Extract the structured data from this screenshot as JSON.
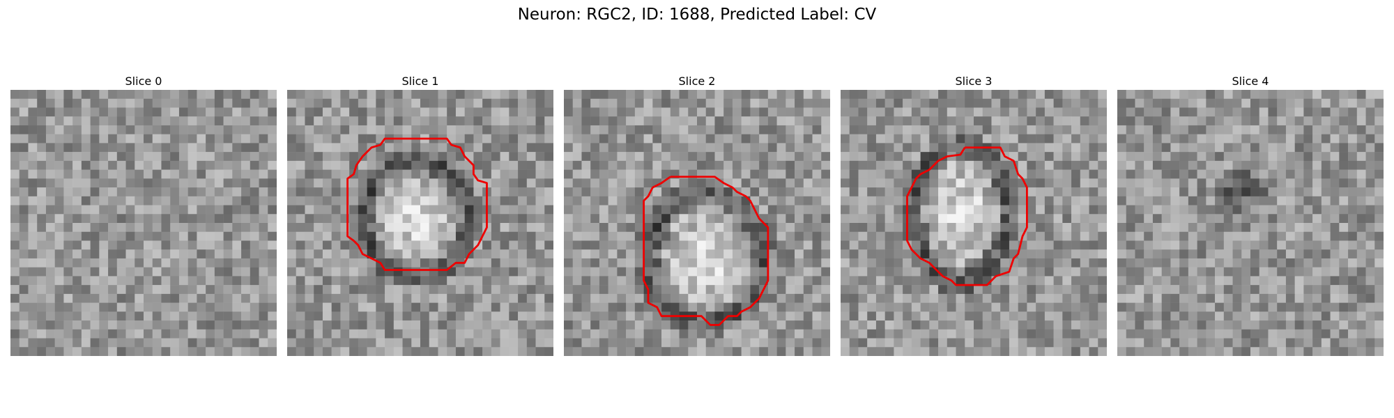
{
  "figure": {
    "title": "Neuron: RGC2, ID: 1688, Predicted Label: CV"
  },
  "slices": [
    {
      "label": "Slice 0",
      "has_contour": false,
      "seed": 11,
      "blob": null
    },
    {
      "label": "Slice 1",
      "has_contour": true,
      "seed": 23,
      "blob": {
        "cx": 14.5,
        "cy": 14.5,
        "rx": 5.2,
        "ry": 6.0,
        "ring": 2.4
      },
      "contour": [
        [
          14,
          5.5
        ],
        [
          18,
          5.5
        ],
        [
          18.5,
          6.2
        ],
        [
          19.5,
          6.5
        ],
        [
          20,
          7.5
        ],
        [
          21,
          8.5
        ],
        [
          21,
          9.5
        ],
        [
          21.5,
          10.2
        ],
        [
          22.5,
          10.5
        ],
        [
          22.5,
          15.5
        ],
        [
          22,
          16.5
        ],
        [
          21.5,
          17.5
        ],
        [
          20.5,
          18.5
        ],
        [
          20,
          19.5
        ],
        [
          19,
          19.5
        ],
        [
          18,
          20.3
        ],
        [
          11,
          20.3
        ],
        [
          10.5,
          19.5
        ],
        [
          9.5,
          19
        ],
        [
          8.5,
          18.5
        ],
        [
          8,
          17.5
        ],
        [
          7.5,
          17
        ],
        [
          6.8,
          16.5
        ],
        [
          6.8,
          10
        ],
        [
          7.5,
          9.5
        ],
        [
          7.8,
          8.5
        ],
        [
          8.5,
          7.5
        ],
        [
          9.5,
          6.5
        ],
        [
          10.5,
          6.2
        ],
        [
          11,
          5.5
        ],
        [
          14,
          5.5
        ]
      ]
    },
    {
      "label": "Slice 2",
      "has_contour": true,
      "seed": 37,
      "blob": {
        "cx": 16.0,
        "cy": 19.0,
        "rx": 5.8,
        "ry": 6.6,
        "ring": 2.2
      },
      "contour": [
        [
          12,
          9.8
        ],
        [
          17,
          9.8
        ],
        [
          18,
          10.5
        ],
        [
          19,
          11
        ],
        [
          19.5,
          11.5
        ],
        [
          20.5,
          12
        ],
        [
          21,
          12.5
        ],
        [
          21.5,
          13.5
        ],
        [
          22,
          14.5
        ],
        [
          23,
          15.5
        ],
        [
          23,
          21.5
        ],
        [
          22.5,
          22.5
        ],
        [
          22,
          23.5
        ],
        [
          21,
          24.5
        ],
        [
          20,
          25
        ],
        [
          19.5,
          25.5
        ],
        [
          18.5,
          25.5
        ],
        [
          17.5,
          26.5
        ],
        [
          16.5,
          26.5
        ],
        [
          15.5,
          25.5
        ],
        [
          12.5,
          25.5
        ],
        [
          11,
          25.5
        ],
        [
          10.5,
          24.5
        ],
        [
          9.5,
          24
        ],
        [
          9.5,
          22.5
        ],
        [
          9,
          21.5
        ],
        [
          9,
          12.5
        ],
        [
          9.5,
          12
        ],
        [
          10,
          11
        ],
        [
          11,
          10.5
        ],
        [
          12,
          9.8
        ]
      ]
    },
    {
      "label": "Slice 3",
      "has_contour": true,
      "seed": 53,
      "blob": {
        "cx": 13.5,
        "cy": 14.0,
        "rx": 4.8,
        "ry": 7.0,
        "ring": 2.0
      },
      "contour": [
        [
          14,
          6.5
        ],
        [
          18,
          6.5
        ],
        [
          18.5,
          7.5
        ],
        [
          19.5,
          8
        ],
        [
          20,
          9.5
        ],
        [
          20.5,
          10
        ],
        [
          21,
          11
        ],
        [
          21,
          15.5
        ],
        [
          20.5,
          16.5
        ],
        [
          20,
          18.5
        ],
        [
          19.5,
          19
        ],
        [
          19,
          20.5
        ],
        [
          17.5,
          21
        ],
        [
          17,
          21.5
        ],
        [
          16.5,
          22
        ],
        [
          13,
          22
        ],
        [
          12.5,
          21.5
        ],
        [
          11.5,
          21
        ],
        [
          10.5,
          20
        ],
        [
          10,
          19.5
        ],
        [
          9,
          19
        ],
        [
          8,
          18
        ],
        [
          7.5,
          17
        ],
        [
          7.5,
          12
        ],
        [
          8,
          11
        ],
        [
          8.5,
          10
        ],
        [
          9,
          9.5
        ],
        [
          10,
          9
        ],
        [
          11,
          8
        ],
        [
          12,
          7.5
        ],
        [
          13.5,
          7.3
        ],
        [
          14,
          6.5
        ]
      ]
    },
    {
      "label": "Slice 4",
      "has_contour": false,
      "seed": 71,
      "blob": {
        "cx": 14.0,
        "cy": 11.5,
        "rx": 3.5,
        "ry": 3.0,
        "ring": 0,
        "dark": true
      }
    }
  ],
  "colors": {
    "contour": "#ee0000",
    "background": "#ffffff"
  }
}
